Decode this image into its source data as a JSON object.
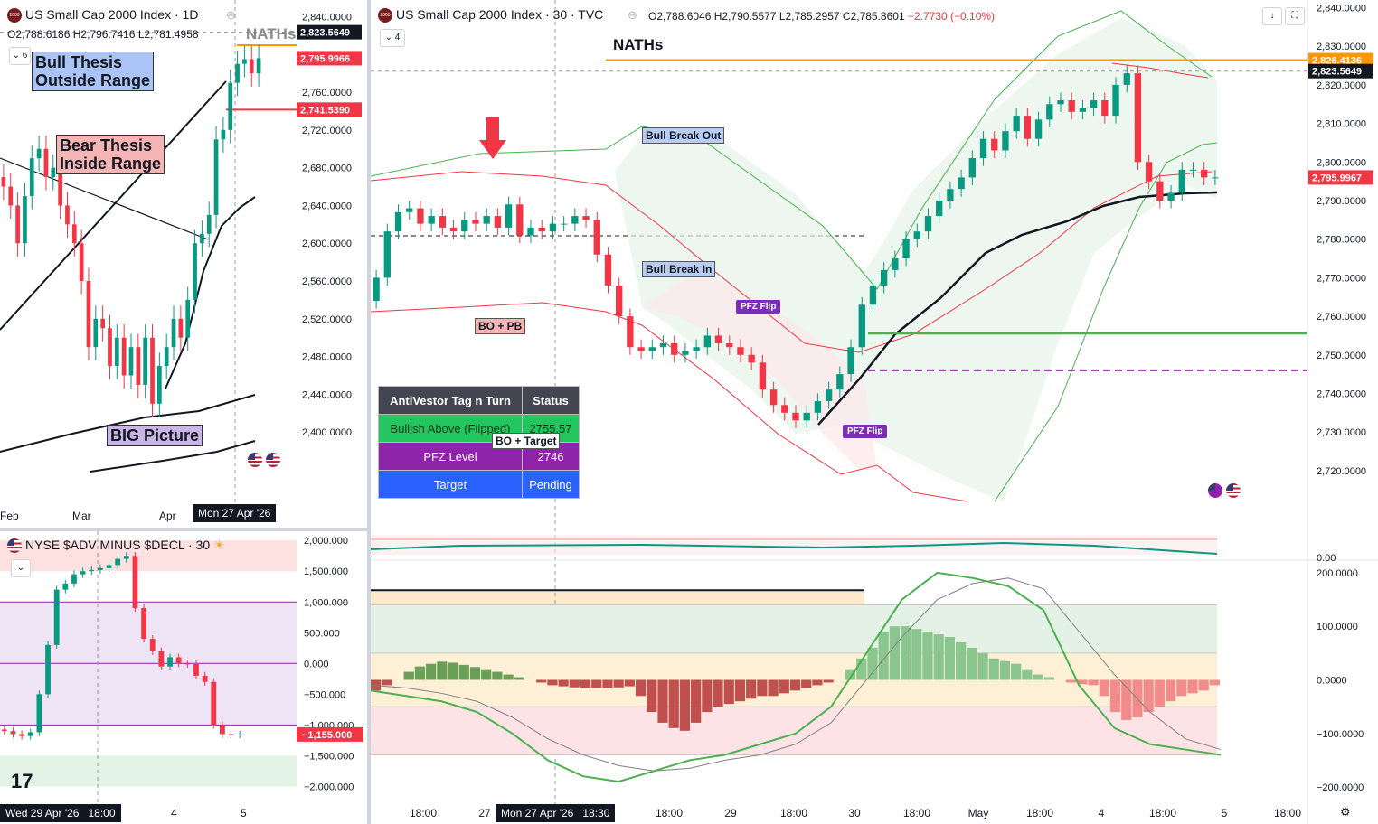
{
  "daily": {
    "title": "US Small Cap 2000 Index · 1D",
    "ohlc_o": "O2,788.6186",
    "ohlc_h": "H2,796.7416",
    "ohlc_l": "L2,781.4958",
    "collapse_count": "6",
    "nath_label": "NATHs",
    "annotations": {
      "bull_thesis": "Bull Thesis\nOutside Range",
      "bear_thesis": "Bear Thesis\nInside Range",
      "big_picture": "BIG Picture"
    },
    "time_tag": "Mon 27 Apr '26",
    "colors": {
      "bull_thesis_bg": "#a9c4f5",
      "bear_thesis_bg": "#f5b5b5",
      "big_picture_bg": "#c9b6e6"
    }
  },
  "adv": {
    "title": "NYSE $ADV MINUS $DECL · 30",
    "time_tag": "Wed 29 Apr '26",
    "time_extra": "18:00"
  },
  "main": {
    "title": "US Small Cap 2000 Index · 30 · TVC",
    "ohlc_o": "O2,788.6046",
    "ohlc_h": "H2,790.5577",
    "ohlc_l": "L2,785.2957",
    "ohlc_c": "C2,785.8601",
    "ohlc_chg": "−2.7730 (−0.10%)",
    "collapse_count": "4",
    "nath_label": "NATHs",
    "labels": {
      "bull_break_out": "Bull Break Out",
      "bull_break_in": "Bull Break In",
      "bo_pb": "BO + PB",
      "bo_target": "BO + Target",
      "pfz_flip": "PFZ Flip"
    },
    "table": {
      "header": [
        "AntiVestor Tag n Turn",
        "Status"
      ],
      "rows": [
        [
          "Bullish Above (Flipped)",
          "2755.57"
        ],
        [
          "PFZ Level",
          "2746"
        ],
        [
          "Target",
          "Pending"
        ]
      ]
    },
    "time_tag": "Mon 27 Apr '26",
    "time_tag_extra": "18:30",
    "colors": {
      "up": "#089981",
      "down": "#f23645",
      "nath": "#ff9800",
      "range_fill": "#fde3bf"
    }
  },
  "chart_data": [
    {
      "type": "candlestick",
      "title": "US Small Cap 2000 Index · 1D",
      "x_ticks": [
        "Feb",
        "Mar",
        "Apr",
        "5"
      ],
      "y_ticks": [
        2400,
        2440,
        2480,
        2520,
        2560,
        2600,
        2640,
        2680,
        2720,
        2760,
        2800,
        2840
      ],
      "y_tick_labels": [
        "2,400.0000",
        "2,440.0000",
        "2,480.0000",
        "2,520.0000",
        "2,560.0000",
        "2,600.0000",
        "2,640.0000",
        "2,680.0000",
        "2,720.0000",
        "2,760.0000",
        "2,800.0000",
        "2,840.0000"
      ],
      "ylim": [
        2360,
        2850
      ],
      "price_tags": [
        {
          "text": "2,823.5649",
          "value": 2823.5649,
          "color": "#131722"
        },
        {
          "text": "2,795.9966",
          "value": 2795.9966,
          "color": "#f23645"
        },
        {
          "text": "2,741.5390",
          "value": 2741.539,
          "color": "#f23645"
        }
      ],
      "closes": [
        2660,
        2640,
        2600,
        2650,
        2690,
        2700,
        2670,
        2680,
        2640,
        2620,
        2600,
        2560,
        2490,
        2520,
        2510,
        2470,
        2500,
        2460,
        2490,
        2450,
        2500,
        2430,
        2470,
        2490,
        2520,
        2500,
        2540,
        2600,
        2610,
        2630,
        2710,
        2720,
        2770,
        2790,
        2795,
        2780,
        2796
      ]
    },
    {
      "type": "candlestick",
      "title": "NYSE $ADV MINUS $DECL · 30",
      "x_ticks": [
        "4",
        "5"
      ],
      "y_ticks": [
        -2000,
        -1500,
        -1000,
        -500,
        0,
        500,
        1000,
        1500,
        2000
      ],
      "y_tick_labels": [
        "−2,000.000",
        "−1,500.000",
        "−1,000.000",
        "−500.000",
        "0.000",
        "500.000",
        "1,000.000",
        "1,500.000",
        "2,000.000"
      ],
      "ylim": [
        -2200,
        2150
      ],
      "last_value": "−1,155.000",
      "closes": [
        -1100,
        -1150,
        -1180,
        -1120,
        -500,
        300,
        1200,
        1300,
        1450,
        1500,
        1520,
        1550,
        1600,
        1700,
        1750,
        900,
        400,
        200,
        -50,
        100,
        0,
        -10,
        -200,
        -300,
        -1000,
        -1150,
        -1160,
        -1155
      ]
    },
    {
      "type": "candlestick",
      "title": "US Small Cap 2000 Index · 30 · TVC",
      "x_ticks": [
        "18:00",
        "27",
        "18:00",
        "29",
        "18:00",
        "30",
        "18:00",
        "May",
        "18:00",
        "4",
        "18:00",
        "5",
        "18:00"
      ],
      "y_ticks": [
        2720,
        2730,
        2740,
        2750,
        2760,
        2770,
        2780,
        2790,
        2800,
        2810,
        2820,
        2830,
        2840
      ],
      "y_tick_labels": [
        "2,720.0000",
        "2,730.0000",
        "2,740.0000",
        "2,750.0000",
        "2,760.0000",
        "2,770.0000",
        "2,780.0000",
        "2,790.0000",
        "2,800.0000",
        "2,810.0000",
        "2,820.0000",
        "2,830.0000",
        "2,840.0000"
      ],
      "ylim": [
        2712,
        2842
      ],
      "nath": 2826.4136,
      "range_top": 2689,
      "range_bottom": 2655,
      "bullish_above": 2755.57,
      "pfz_level": 2746,
      "price_tags": [
        {
          "text": "2,826.4136",
          "value": 2826.4136,
          "color": "#ff9800"
        },
        {
          "text": "2,823.5649",
          "value": 2823.5649,
          "color": "#131722"
        },
        {
          "text": "2,795.9967",
          "value": 2795.9967,
          "color": "#f23645"
        }
      ],
      "closes": [
        2770,
        2782,
        2787,
        2788,
        2784,
        2786,
        2783,
        2782,
        2785,
        2784,
        2786,
        2783,
        2789,
        2781,
        2783,
        2782,
        2784,
        2784,
        2786,
        2785,
        2776,
        2768,
        2760,
        2752,
        2751,
        2752,
        2753,
        2750,
        2751,
        2752,
        2755,
        2753,
        2752,
        2750,
        2748,
        2741,
        2737,
        2735,
        2733,
        2735,
        2738,
        2741,
        2745,
        2752,
        2763,
        2768,
        2772,
        2775,
        2780,
        2782,
        2786,
        2790,
        2793,
        2796,
        2801,
        2806,
        2803,
        2808,
        2812,
        2806,
        2811,
        2815,
        2816,
        2813,
        2814,
        2816,
        2812,
        2820,
        2823,
        2800,
        2795,
        2790,
        2792,
        2798,
        2798,
        2796,
        2796
      ]
    },
    {
      "type": "bar",
      "title": "Momentum histogram",
      "y_ticks": [
        -200,
        -100,
        0,
        100,
        200
      ],
      "y_tick_labels": [
        "−200.0000",
        "−100.0000",
        "0.0000",
        "100.0000",
        "200.0000"
      ],
      "ylim": [
        -210,
        215
      ],
      "upper_labels": [
        "0.00"
      ],
      "histogram": [
        -20,
        -10,
        0,
        15,
        25,
        30,
        34,
        32,
        28,
        24,
        20,
        15,
        10,
        5,
        0,
        -5,
        -10,
        -12,
        -14,
        -15,
        -15,
        -15,
        -14,
        -12,
        -30,
        -60,
        -80,
        -90,
        -95,
        -80,
        -60,
        -50,
        -45,
        -40,
        -35,
        -30,
        -30,
        -25,
        -20,
        -15,
        -10,
        -5,
        0,
        20,
        40,
        60,
        90,
        100,
        100,
        95,
        90,
        85,
        80,
        70,
        60,
        50,
        40,
        35,
        30,
        20,
        10,
        5,
        0,
        -5,
        -8,
        -10,
        -30,
        -60,
        -75,
        -70,
        -60,
        -50,
        -40,
        -30,
        -25,
        -20,
        -10
      ],
      "line_fast": [
        -20,
        -30,
        -40,
        -60,
        -100,
        -150,
        -180,
        -190,
        -170,
        -150,
        -140,
        -120,
        -100,
        -50,
        50,
        150,
        200,
        190,
        175,
        130,
        -10,
        -90,
        -120,
        -130,
        -140
      ],
      "line_slow": [
        -10,
        -15,
        -25,
        -40,
        -70,
        -110,
        -140,
        -160,
        -170,
        -165,
        -150,
        -140,
        -120,
        -80,
        0,
        80,
        150,
        180,
        190,
        170,
        90,
        10,
        -60,
        -110,
        -130
      ]
    }
  ]
}
